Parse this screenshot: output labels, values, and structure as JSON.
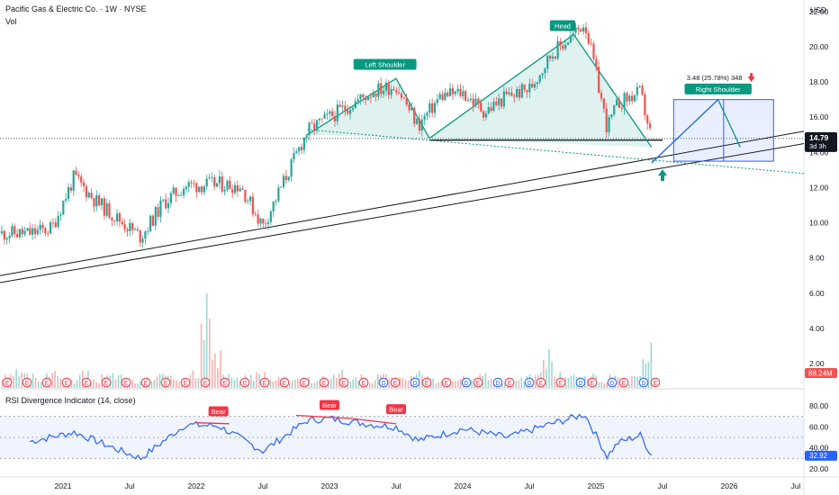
{
  "header": {
    "title": "Pacific Gas & Electric Co. · 1W · NYSE",
    "vol_label": "Vol",
    "currency": "USD"
  },
  "rsi_panel": {
    "title": "RSI Divergence Indicator (14, close)",
    "value_label": "32.92",
    "axis": [
      "80.00",
      "60.00",
      "40.00",
      "20.00"
    ]
  },
  "price_badge": {
    "price": "14.79",
    "countdown": "3d 3h"
  },
  "volume_badge": "88.24M",
  "annotations": {
    "left_shoulder": "Left Shoulder",
    "head": "Head",
    "right_shoulder": "Right Shoulder",
    "measure": "3.48 (25.78%) 348",
    "bear": "Bear"
  },
  "colors": {
    "up": "#26a69a",
    "down": "#ef5350",
    "pattern": "#089981",
    "projection": "#2962ff",
    "rsi": "#2962ff",
    "bear": "#f23645"
  },
  "chart_data": {
    "type": "candlestick",
    "title": "Pacific Gas & Electric Co. · 1W · NYSE",
    "x_ticks": [
      "2021",
      "Jul",
      "2022",
      "Jul",
      "2023",
      "Jul",
      "2024",
      "Jul",
      "2025",
      "Jul",
      "2026",
      "Jul"
    ],
    "y_ticks": [
      "22.00",
      "20.00",
      "18.00",
      "16.00",
      "14.00",
      "12.00",
      "10.00",
      "8.00",
      "6.00",
      "4.00",
      "2.00"
    ],
    "ylim": [
      1,
      22.5
    ],
    "last_price": 14.79,
    "price_path": [
      [
        "2020-10",
        9.4
      ],
      [
        "2020-12",
        9.7
      ],
      [
        "2021-02",
        12.6
      ],
      [
        "2021-04",
        11.2
      ],
      [
        "2021-06",
        10.2
      ],
      [
        "2021-08",
        9.2
      ],
      [
        "2021-10",
        11.1
      ],
      [
        "2021-12",
        12.1
      ],
      [
        "2022-03",
        12.2
      ],
      [
        "2022-05",
        12.1
      ],
      [
        "2022-07",
        9.8
      ],
      [
        "2022-09",
        12.5
      ],
      [
        "2022-11",
        15.2
      ],
      [
        "2023-01",
        16.0
      ],
      [
        "2023-05",
        17.5
      ],
      [
        "2023-07",
        17.8
      ],
      [
        "2023-09",
        15.5
      ],
      [
        "2023-11",
        17.2
      ],
      [
        "2024-01",
        17.4
      ],
      [
        "2024-03",
        16.3
      ],
      [
        "2024-05",
        17.2
      ],
      [
        "2024-07",
        17.6
      ],
      [
        "2024-09",
        19.6
      ],
      [
        "2024-11",
        20.7
      ],
      [
        "2024-12",
        21.4
      ],
      [
        "2025-01",
        18.5
      ],
      [
        "2025-02",
        15.4
      ],
      [
        "2025-03",
        16.8
      ],
      [
        "2025-05",
        17.4
      ],
      [
        "2025-06",
        14.8
      ]
    ],
    "rsi_path": [
      [
        "2020-10",
        46
      ],
      [
        "2021-02",
        55
      ],
      [
        "2021-06",
        38
      ],
      [
        "2021-08",
        30
      ],
      [
        "2021-12",
        62
      ],
      [
        "2022-03",
        61
      ],
      [
        "2022-07",
        37
      ],
      [
        "2022-11",
        66
      ],
      [
        "2023-01",
        68
      ],
      [
        "2023-05",
        62
      ],
      [
        "2023-07",
        60
      ],
      [
        "2023-09",
        47
      ],
      [
        "2024-01",
        58
      ],
      [
        "2024-05",
        50
      ],
      [
        "2024-09",
        63
      ],
      [
        "2024-12",
        72
      ],
      [
        "2025-02",
        32
      ],
      [
        "2025-03",
        45
      ],
      [
        "2025-05",
        52
      ],
      [
        "2025-06",
        33
      ]
    ],
    "volume_m": [
      22,
      30,
      25,
      18,
      40,
      20,
      15,
      28,
      18,
      22,
      30,
      16,
      12,
      18,
      26,
      20,
      14,
      36,
      180,
      60,
      28,
      18,
      22,
      30,
      16,
      22,
      18,
      24,
      14,
      20,
      34,
      18,
      22,
      16,
      26,
      20,
      18,
      28,
      22,
      16,
      14,
      20,
      18,
      24,
      16,
      12,
      18,
      22,
      26,
      70,
      28,
      30,
      20,
      24,
      18,
      22,
      12,
      20,
      88
    ],
    "series": [
      {
        "name": "Left Shoulder",
        "points": [
          [
            "2022-11",
            15.0
          ],
          [
            "2023-07",
            18.2
          ],
          [
            "2023-10",
            14.8
          ]
        ]
      },
      {
        "name": "Head",
        "points": [
          [
            "2023-10",
            14.8
          ],
          [
            "2024-11",
            20.7
          ],
          [
            "2025-06",
            14.3
          ]
        ]
      },
      {
        "name": "Right Shoulder",
        "points": [
          [
            "2025-06",
            13.4
          ],
          [
            "2025-12",
            17.0
          ],
          [
            "2026-02",
            14.3
          ]
        ]
      }
    ]
  }
}
